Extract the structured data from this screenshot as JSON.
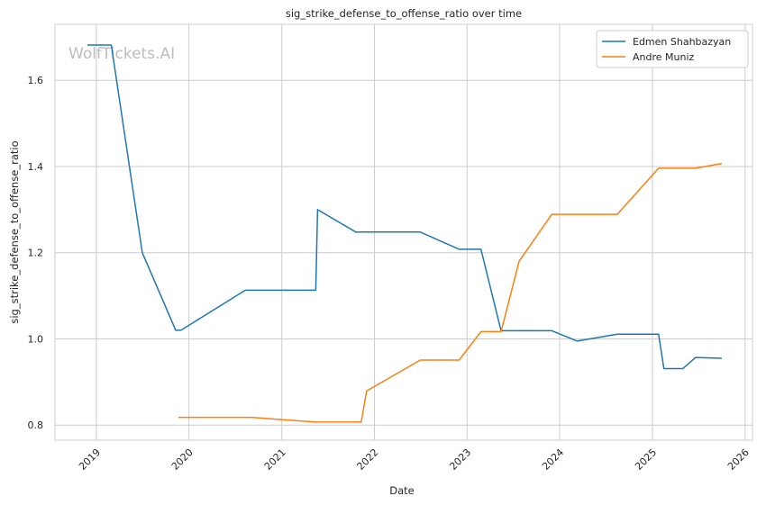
{
  "chart_data": {
    "type": "line",
    "title": "sig_strike_defense_to_offense_ratio over time",
    "xlabel": "Date",
    "ylabel": "sig_strike_defense_to_offense_ratio",
    "watermark": "WolfTickets.AI",
    "xlim": [
      "2018-07-22",
      "2026-01-30"
    ],
    "ylim": [
      0.765,
      1.73
    ],
    "x_ticks": [
      "2019-01-01",
      "2020-01-01",
      "2021-01-01",
      "2022-01-01",
      "2023-01-01",
      "2024-01-01",
      "2025-01-01",
      "2026-01-01"
    ],
    "x_tick_labels": [
      "2019",
      "2020",
      "2021",
      "2022",
      "2023",
      "2024",
      "2025",
      "2026"
    ],
    "y_ticks": [
      0.8,
      1.0,
      1.2,
      1.4,
      1.6
    ],
    "y_tick_labels": [
      "0.8",
      "1.0",
      "1.2",
      "1.4",
      "1.6"
    ],
    "grid": true,
    "legend_position": "top-right",
    "series": [
      {
        "name": "Edmen Shahbazyan",
        "color": "#1f77b4",
        "x": [
          "2018-11-27",
          "2019-03-01",
          "2019-07-01",
          "2019-11-10",
          "2019-11-30",
          "2020-08-10",
          "2021-05-15",
          "2021-05-22",
          "2021-10-20",
          "2022-07-01",
          "2022-12-01",
          "2023-02-25",
          "2023-05-15",
          "2023-12-01",
          "2024-03-10",
          "2024-08-15",
          "2025-01-25",
          "2025-02-15",
          "2025-04-30",
          "2025-06-20",
          "2025-10-01"
        ],
        "values": [
          1.682,
          1.682,
          1.2,
          1.02,
          1.02,
          1.113,
          1.113,
          1.3,
          1.248,
          1.248,
          1.208,
          1.208,
          1.019,
          1.019,
          0.995,
          1.011,
          1.011,
          0.931,
          0.931,
          0.957,
          0.955
        ]
      },
      {
        "name": "Andre Muniz",
        "color": "#ff7f0e",
        "x": [
          "2019-11-20",
          "2020-09-01",
          "2021-05-15",
          "2021-11-10",
          "2021-12-01",
          "2022-07-01",
          "2022-12-01",
          "2023-02-25",
          "2023-05-15",
          "2023-07-25",
          "2023-12-01",
          "2024-08-15",
          "2025-01-25",
          "2025-06-20",
          "2025-10-01"
        ],
        "values": [
          0.818,
          0.818,
          0.807,
          0.807,
          0.879,
          0.951,
          0.951,
          1.017,
          1.017,
          1.18,
          1.289,
          1.289,
          1.396,
          1.396,
          1.407
        ]
      }
    ]
  }
}
